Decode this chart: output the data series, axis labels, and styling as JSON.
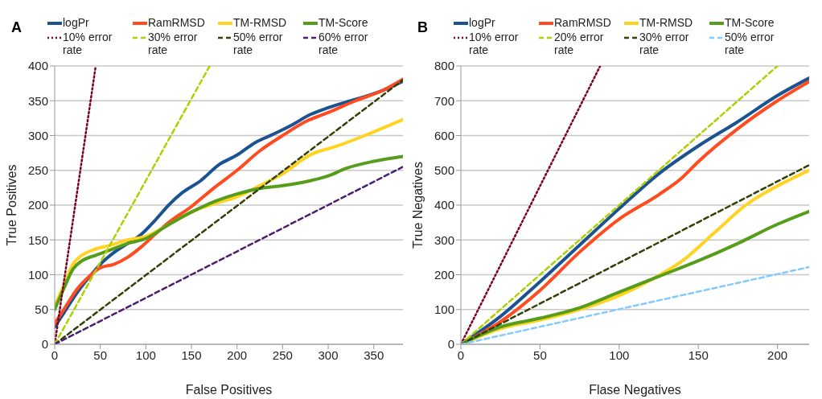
{
  "chart_data": [
    {
      "type": "line",
      "title": "A",
      "xlabel": "False Positives",
      "ylabel": "True Positives",
      "xlim": [
        0,
        382
      ],
      "xticks": [
        0,
        50,
        100,
        150,
        200,
        250,
        300,
        350
      ],
      "ylim": [
        0,
        400
      ],
      "yticks": [
        0,
        50,
        100,
        150,
        200,
        250,
        300,
        350,
        400
      ],
      "grid": "y",
      "legend": "top",
      "marker": "none",
      "series": [
        {
          "name": "logPr",
          "color": "#1b5290",
          "line_style": "solid",
          "x": [
            0,
            10,
            25,
            40,
            50,
            65,
            80,
            95,
            110,
            125,
            140,
            160,
            180,
            200,
            220,
            240,
            260,
            280,
            300,
            330,
            360,
            382
          ],
          "values": [
            25,
            45,
            75,
            100,
            115,
            132,
            145,
            158,
            178,
            200,
            218,
            235,
            258,
            272,
            290,
            302,
            315,
            330,
            340,
            352,
            365,
            378
          ]
        },
        {
          "name": "RamRMSD",
          "color": "#ff4b1f",
          "line_style": "solid",
          "x": [
            0,
            10,
            25,
            40,
            50,
            65,
            80,
            95,
            110,
            125,
            150,
            175,
            200,
            225,
            250,
            275,
            300,
            330,
            360,
            382
          ],
          "values": [
            30,
            50,
            80,
            100,
            110,
            115,
            125,
            140,
            158,
            175,
            198,
            225,
            250,
            278,
            300,
            320,
            333,
            350,
            365,
            381
          ]
        },
        {
          "name": "TM-RMSD",
          "color": "#ffd320",
          "line_style": "solid",
          "x": [
            0,
            10,
            20,
            30,
            45,
            60,
            80,
            100,
            125,
            150,
            175,
            200,
            225,
            250,
            280,
            310,
            340,
            382
          ],
          "values": [
            55,
            85,
            115,
            128,
            137,
            142,
            150,
            155,
            172,
            190,
            202,
            212,
            228,
            245,
            272,
            285,
            300,
            323
          ]
        },
        {
          "name": "TM-Score",
          "color": "#579d1c",
          "line_style": "solid",
          "x": [
            0,
            10,
            20,
            30,
            45,
            60,
            80,
            100,
            125,
            150,
            175,
            200,
            225,
            250,
            280,
            300,
            320,
            350,
            382
          ],
          "values": [
            50,
            80,
            108,
            120,
            128,
            135,
            145,
            152,
            172,
            190,
            205,
            216,
            224,
            228,
            235,
            242,
            253,
            263,
            270
          ]
        },
        {
          "name": "10% error rate",
          "color": "#7e0021",
          "line_style": "dotted",
          "x": [
            0,
            45
          ],
          "values": [
            0,
            400
          ]
        },
        {
          "name": "30% error rate",
          "color": "#aecf00",
          "line_style": "dashed",
          "x": [
            0,
            170
          ],
          "values": [
            0,
            400
          ]
        },
        {
          "name": "50% error rate",
          "color": "#314004",
          "line_style": "dashed",
          "x": [
            0,
            382
          ],
          "values": [
            0,
            380
          ]
        },
        {
          "name": "60% error rate",
          "color": "#4b1f6f",
          "line_style": "dashed",
          "x": [
            0,
            382
          ],
          "values": [
            0,
            255
          ]
        }
      ]
    },
    {
      "type": "line",
      "title": "B",
      "xlabel": "Flase Negatives",
      "ylabel": "True Negatives",
      "xlim": [
        0,
        220
      ],
      "xticks": [
        0,
        50,
        100,
        150,
        200
      ],
      "ylim": [
        0,
        800
      ],
      "yticks": [
        0,
        100,
        200,
        300,
        400,
        500,
        600,
        700,
        800
      ],
      "grid": "y",
      "legend": "top",
      "marker": "none",
      "series": [
        {
          "name": "logPr",
          "color": "#1b5290",
          "line_style": "solid",
          "x": [
            0,
            25,
            50,
            75,
            100,
            125,
            150,
            175,
            200,
            220
          ],
          "values": [
            0,
            80,
            180,
            285,
            390,
            490,
            570,
            640,
            715,
            765
          ]
        },
        {
          "name": "RamRMSD",
          "color": "#ff4b1f",
          "line_style": "solid",
          "x": [
            0,
            25,
            50,
            75,
            100,
            125,
            140,
            150,
            175,
            200,
            220
          ],
          "values": [
            0,
            65,
            155,
            265,
            360,
            430,
            480,
            525,
            620,
            700,
            755
          ]
        },
        {
          "name": "TM-RMSD",
          "color": "#ffd320",
          "line_style": "solid",
          "x": [
            0,
            25,
            50,
            75,
            100,
            120,
            140,
            160,
            180,
            200,
            220
          ],
          "values": [
            0,
            45,
            70,
            100,
            140,
            185,
            240,
            320,
            400,
            455,
            500
          ]
        },
        {
          "name": "TM-Score",
          "color": "#579d1c",
          "line_style": "solid",
          "x": [
            0,
            25,
            50,
            75,
            100,
            125,
            150,
            175,
            200,
            220
          ],
          "values": [
            0,
            50,
            75,
            105,
            150,
            195,
            240,
            290,
            345,
            382
          ]
        },
        {
          "name": "10% error rate",
          "color": "#7e0021",
          "line_style": "dotted",
          "x": [
            0,
            88
          ],
          "values": [
            0,
            800
          ]
        },
        {
          "name": "20% error rate",
          "color": "#aecf00",
          "line_style": "dashed",
          "x": [
            0,
            200
          ],
          "values": [
            0,
            800
          ]
        },
        {
          "name": "30% error rate",
          "color": "#314004",
          "line_style": "dashed",
          "x": [
            0,
            220
          ],
          "values": [
            0,
            515
          ]
        },
        {
          "name": "50% error rate",
          "color": "#83caff",
          "line_style": "dashed",
          "x": [
            0,
            220
          ],
          "values": [
            0,
            222
          ]
        }
      ]
    }
  ]
}
